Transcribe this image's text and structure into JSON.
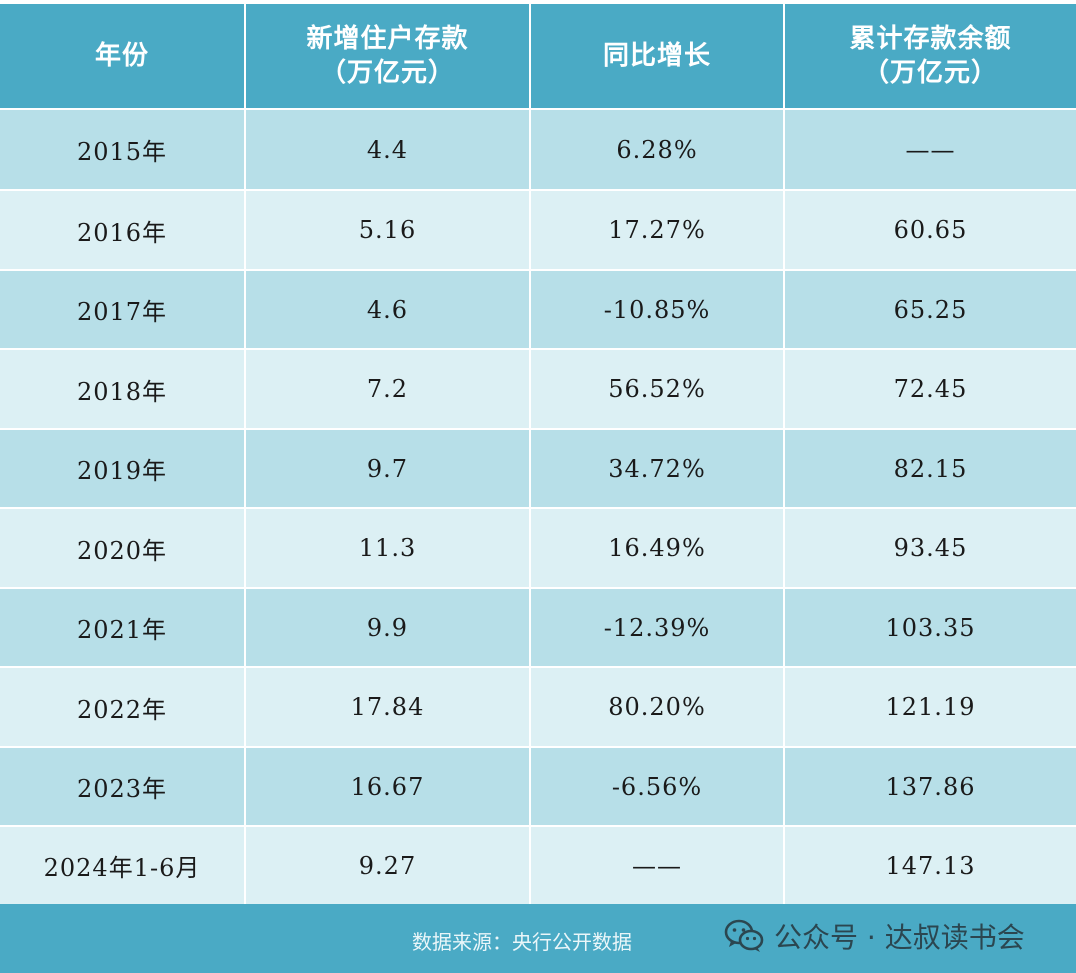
{
  "table": {
    "headers": [
      [
        "年份"
      ],
      [
        "新增住户存款",
        "（万亿元）"
      ],
      [
        "同比增长"
      ],
      [
        "累计存款余额",
        "（万亿元）"
      ]
    ],
    "rows": [
      [
        "2015年",
        "4.4",
        "6.28%",
        "——"
      ],
      [
        "2016年",
        "5.16",
        "17.27%",
        "60.65"
      ],
      [
        "2017年",
        "4.6",
        "-10.85%",
        "65.25"
      ],
      [
        "2018年",
        "7.2",
        "56.52%",
        "72.45"
      ],
      [
        "2019年",
        "9.7",
        "34.72%",
        "82.15"
      ],
      [
        "2020年",
        "11.3",
        "16.49%",
        "93.45"
      ],
      [
        "2021年",
        "9.9",
        "-12.39%",
        "103.35"
      ],
      [
        "2022年",
        "17.84",
        "80.20%",
        "121.19"
      ],
      [
        "2023年",
        "16.67",
        "-6.56%",
        "137.86"
      ],
      [
        "2024年1-6月",
        "9.27",
        "——",
        "147.13"
      ]
    ]
  },
  "footer": {
    "source": "数据来源：央行公开数据",
    "watermark": "公众号 · 达叔读书会",
    "watermark_icon": "wechat-icon"
  },
  "colors": {
    "header_bg": "#4aaac5",
    "row_odd_bg": "#b7dfe8",
    "row_even_bg": "#dcf0f4"
  }
}
